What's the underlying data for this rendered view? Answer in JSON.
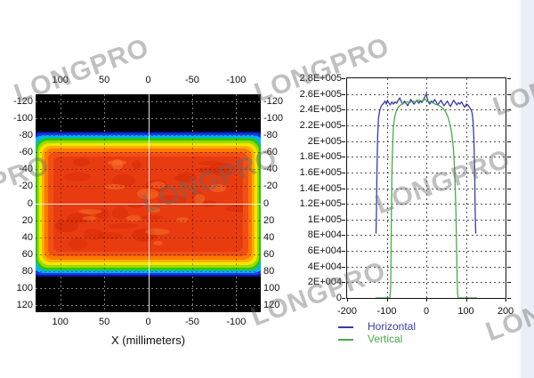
{
  "watermark": {
    "text": "LONGPRO"
  },
  "left_chart": {
    "xlabel": "X (millimeters)",
    "x_tick_labels": [
      "100",
      "50",
      "0",
      "-50",
      "-100"
    ],
    "y_tick_labels": [
      "-120",
      "-100",
      "-80",
      "-60",
      "-40",
      "-20",
      "0",
      "20",
      "40",
      "60",
      "80",
      "100",
      "120"
    ]
  },
  "right_chart": {
    "x_tick_labels": [
      "-200",
      "-100",
      "0",
      "100",
      "200"
    ],
    "y_tick_labels": [
      "2.8E+005",
      "2.6E+005",
      "2.4E+005",
      "2.2E+005",
      "2E+005",
      "1.8E+005",
      "1.6E+005",
      "1.4E+005",
      "1.2E+005",
      "1E+005",
      "8E+004",
      "6E+004",
      "4E+004",
      "2E+004",
      "0"
    ],
    "legend": [
      {
        "label": "Horizontal",
        "color": "#3a3aa8"
      },
      {
        "label": "Vertical",
        "color": "#4aaa4a"
      }
    ]
  },
  "chart_data": [
    {
      "type": "heatmap",
      "panel": "left",
      "title": "",
      "xlabel": "X (millimeters)",
      "x_axis_range": [
        128,
        -128
      ],
      "y_axis_range": [
        -128,
        128
      ],
      "x_ticks": [
        100,
        50,
        0,
        -50,
        -100
      ],
      "y_ticks": [
        -120,
        -100,
        -80,
        -60,
        -40,
        -20,
        0,
        20,
        40,
        60,
        80,
        100,
        120
      ],
      "grid": true,
      "beam": {
        "x_extent_mm": [
          -128,
          128
        ],
        "y_extent_mm": [
          -80,
          80
        ],
        "peak_intensity": 260000,
        "background": "#000000",
        "colormap_stops": [
          "#0a16a8",
          "#2038e8",
          "#00b4f0",
          "#28c814",
          "#a0d800",
          "#f0e800",
          "#ffb000",
          "#ff7800",
          "#f05014",
          "#e83c10"
        ],
        "noise_colors": {
          "dark": "#d92c08",
          "light": "#fa7a2e"
        }
      }
    },
    {
      "type": "line",
      "panel": "right",
      "title": "",
      "xlim": [
        -200,
        200
      ],
      "ylim": [
        0,
        280000
      ],
      "x_ticks": [
        -200,
        -100,
        0,
        100,
        200
      ],
      "y_tick_step": 20000,
      "grid": true,
      "legend_position": "bottom",
      "series": [
        {
          "name": "Horizontal",
          "color": "#3a3aa8",
          "points": [
            [
              -127,
              82000
            ],
            [
              -126,
              105000
            ],
            [
              -125,
              150000
            ],
            [
              -123,
              205000
            ],
            [
              -121,
              228000
            ],
            [
              -118,
              238000
            ],
            [
              -115,
              243000
            ],
            [
              -112,
              246000
            ],
            [
              -108,
              248000
            ],
            [
              -104,
              251000
            ],
            [
              -101,
              247000
            ],
            [
              -98,
              252000
            ],
            [
              -95,
              249000
            ],
            [
              -91,
              246000
            ],
            [
              -87,
              250000
            ],
            [
              -83,
              247000
            ],
            [
              -79,
              250000
            ],
            [
              -75,
              248000
            ],
            [
              -71,
              252000
            ],
            [
              -67,
              255000
            ],
            [
              -63,
              250000
            ],
            [
              -59,
              247000
            ],
            [
              -55,
              251000
            ],
            [
              -51,
              248000
            ],
            [
              -47,
              245000
            ],
            [
              -43,
              249000
            ],
            [
              -39,
              253000
            ],
            [
              -35,
              250000
            ],
            [
              -31,
              247000
            ],
            [
              -27,
              250000
            ],
            [
              -23,
              252000
            ],
            [
              -19,
              248000
            ],
            [
              -15,
              251000
            ],
            [
              -11,
              249000
            ],
            [
              -7,
              253000
            ],
            [
              -3,
              257000
            ],
            [
              0,
              260000
            ],
            [
              2,
              255000
            ],
            [
              5,
              250000
            ],
            [
              9,
              247000
            ],
            [
              13,
              251000
            ],
            [
              17,
              249000
            ],
            [
              21,
              253000
            ],
            [
              25,
              250000
            ],
            [
              29,
              246000
            ],
            [
              33,
              249000
            ],
            [
              37,
              252000
            ],
            [
              41,
              248000
            ],
            [
              45,
              245000
            ],
            [
              49,
              248000
            ],
            [
              53,
              251000
            ],
            [
              57,
              247000
            ],
            [
              61,
              244000
            ],
            [
              65,
              248000
            ],
            [
              69,
              252000
            ],
            [
              73,
              249000
            ],
            [
              77,
              246000
            ],
            [
              81,
              249000
            ],
            [
              85,
              247000
            ],
            [
              89,
              250000
            ],
            [
              93,
              246000
            ],
            [
              97,
              243000
            ],
            [
              101,
              247000
            ],
            [
              105,
              246000
            ],
            [
              109,
              243000
            ],
            [
              113,
              240000
            ],
            [
              116,
              235000
            ],
            [
              118,
              225000
            ],
            [
              120,
              205000
            ],
            [
              122,
              165000
            ],
            [
              123,
              125000
            ],
            [
              124,
              95000
            ],
            [
              125,
              82000
            ]
          ]
        },
        {
          "name": "Vertical",
          "color": "#4aaa4a",
          "points": [
            [
              -128,
              0
            ],
            [
              -92,
              0
            ],
            [
              -90,
              15000
            ],
            [
              -89,
              60000
            ],
            [
              -88,
              110000
            ],
            [
              -87,
              155000
            ],
            [
              -85,
              195000
            ],
            [
              -83,
              218000
            ],
            [
              -80,
              230000
            ],
            [
              -76,
              238000
            ],
            [
              -71,
              243000
            ],
            [
              -65,
              246000
            ],
            [
              -58,
              248000
            ],
            [
              -50,
              250000
            ],
            [
              -42,
              249000
            ],
            [
              -34,
              251000
            ],
            [
              -26,
              250000
            ],
            [
              -18,
              252000
            ],
            [
              -10,
              251000
            ],
            [
              -4,
              253000
            ],
            [
              2,
              252000
            ],
            [
              8,
              250000
            ],
            [
              15,
              249000
            ],
            [
              22,
              247000
            ],
            [
              29,
              246000
            ],
            [
              36,
              244000
            ],
            [
              43,
              241000
            ],
            [
              49,
              237000
            ],
            [
              55,
              230000
            ],
            [
              60,
              221000
            ],
            [
              64,
              210000
            ],
            [
              68,
              192000
            ],
            [
              71,
              168000
            ],
            [
              73,
              140000
            ],
            [
              75,
              105000
            ],
            [
              76,
              75000
            ],
            [
              77,
              45000
            ],
            [
              78,
              20000
            ],
            [
              79,
              5000
            ],
            [
              81,
              0
            ],
            [
              128,
              0
            ]
          ]
        }
      ]
    }
  ]
}
